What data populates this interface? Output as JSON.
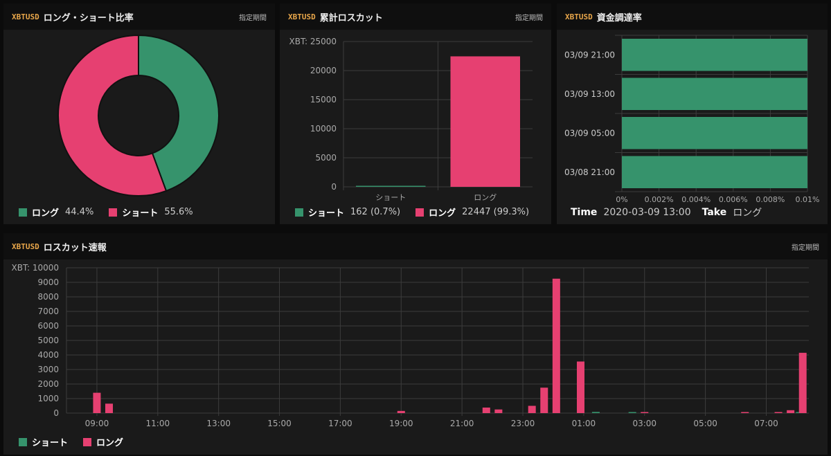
{
  "colors": {
    "green": "#36936c",
    "pink": "#e64071",
    "grid": "#3c3c3c"
  },
  "panels": {
    "ratio": {
      "symbol": "XBTUSD",
      "title": "ロング・ショート比率",
      "period": "指定期間"
    },
    "cumulative": {
      "symbol": "XBTUSD",
      "title": "累計ロスカット",
      "period": "指定期間"
    },
    "funding": {
      "symbol": "XBTUSD",
      "title": "資金調達率"
    },
    "news": {
      "symbol": "XBTUSD",
      "title": "ロスカット速報",
      "period": "指定期間"
    }
  },
  "ratio_legend": [
    {
      "name": "ロング",
      "value": "44.4%"
    },
    {
      "name": "ショート",
      "value": "55.6%"
    }
  ],
  "cum_legend": [
    {
      "name": "ショート",
      "value": "162 (0.7%)"
    },
    {
      "name": "ロング",
      "value": "22447 (99.3%)"
    }
  ],
  "funding_info": {
    "time_label": "Time",
    "time_value": "2020-03-09 13:00",
    "take_label": "Take",
    "take_value": "ロング"
  },
  "news_legend": [
    {
      "name": "ショート"
    },
    {
      "name": "ロング"
    }
  ],
  "chart_data": [
    {
      "type": "pie",
      "labels": [
        "ロング",
        "ショート"
      ],
      "values": [
        44.4,
        55.6
      ],
      "colors": [
        "#36936c",
        "#e64071"
      ],
      "donut": true
    },
    {
      "type": "bar",
      "categories": [
        "ショート",
        "ロング"
      ],
      "values": [
        162,
        22447
      ],
      "colors": [
        "#36936c",
        "#e64071"
      ],
      "ylabel_prefix": "XBT:",
      "yticks": [
        0,
        5000,
        10000,
        15000,
        20000,
        25000
      ],
      "ylim": [
        0,
        25000
      ],
      "grid": true
    },
    {
      "type": "bar",
      "orientation": "horizontal",
      "categories": [
        "03/09 21:00",
        "03/09 13:00",
        "03/09 05:00",
        "03/08 21:00"
      ],
      "values": [
        0.01,
        0.01,
        0.01,
        0.01
      ],
      "xticks": [
        "0%",
        "0.002%",
        "0.004%",
        "0.006%",
        "0.008%",
        "0.01%"
      ],
      "xlim": [
        0,
        0.01
      ],
      "color": "#36936c",
      "grid": true
    },
    {
      "type": "bar",
      "ylabel_prefix": "XBT:",
      "yticks": [
        0,
        1000,
        2000,
        3000,
        4000,
        5000,
        6000,
        7000,
        8000,
        9000,
        10000
      ],
      "ylim": [
        0,
        10000
      ],
      "xrange_hours": [
        8,
        32.4
      ],
      "xticks": [
        {
          "h": 9,
          "label": "09:00"
        },
        {
          "h": 11,
          "label": "11:00"
        },
        {
          "h": 13,
          "label": "13:00"
        },
        {
          "h": 15,
          "label": "15:00"
        },
        {
          "h": 17,
          "label": "17:00"
        },
        {
          "h": 19,
          "label": "19:00"
        },
        {
          "h": 21,
          "label": "21:00"
        },
        {
          "h": 23,
          "label": "23:00"
        },
        {
          "h": 25,
          "label": "01:00"
        },
        {
          "h": 27,
          "label": "03:00"
        },
        {
          "h": 29,
          "label": "05:00"
        },
        {
          "h": 31,
          "label": "07:00"
        }
      ],
      "grid": true,
      "series": [
        {
          "name": "ショート",
          "color": "#36936c",
          "points": [
            {
              "h": 25.4,
              "v": 80
            },
            {
              "h": 26.6,
              "v": 50
            },
            {
              "h": 32.1,
              "v": 30
            }
          ]
        },
        {
          "name": "ロング",
          "color": "#e64071",
          "points": [
            {
              "h": 9.0,
              "v": 1400
            },
            {
              "h": 9.4,
              "v": 650
            },
            {
              "h": 19.0,
              "v": 150
            },
            {
              "h": 21.8,
              "v": 380
            },
            {
              "h": 22.2,
              "v": 250
            },
            {
              "h": 23.3,
              "v": 500
            },
            {
              "h": 23.7,
              "v": 1750
            },
            {
              "h": 24.1,
              "v": 9250
            },
            {
              "h": 24.9,
              "v": 3550
            },
            {
              "h": 27.0,
              "v": 40
            },
            {
              "h": 30.3,
              "v": 30
            },
            {
              "h": 31.4,
              "v": 50
            },
            {
              "h": 31.8,
              "v": 200
            },
            {
              "h": 32.2,
              "v": 4150
            }
          ]
        }
      ]
    }
  ]
}
